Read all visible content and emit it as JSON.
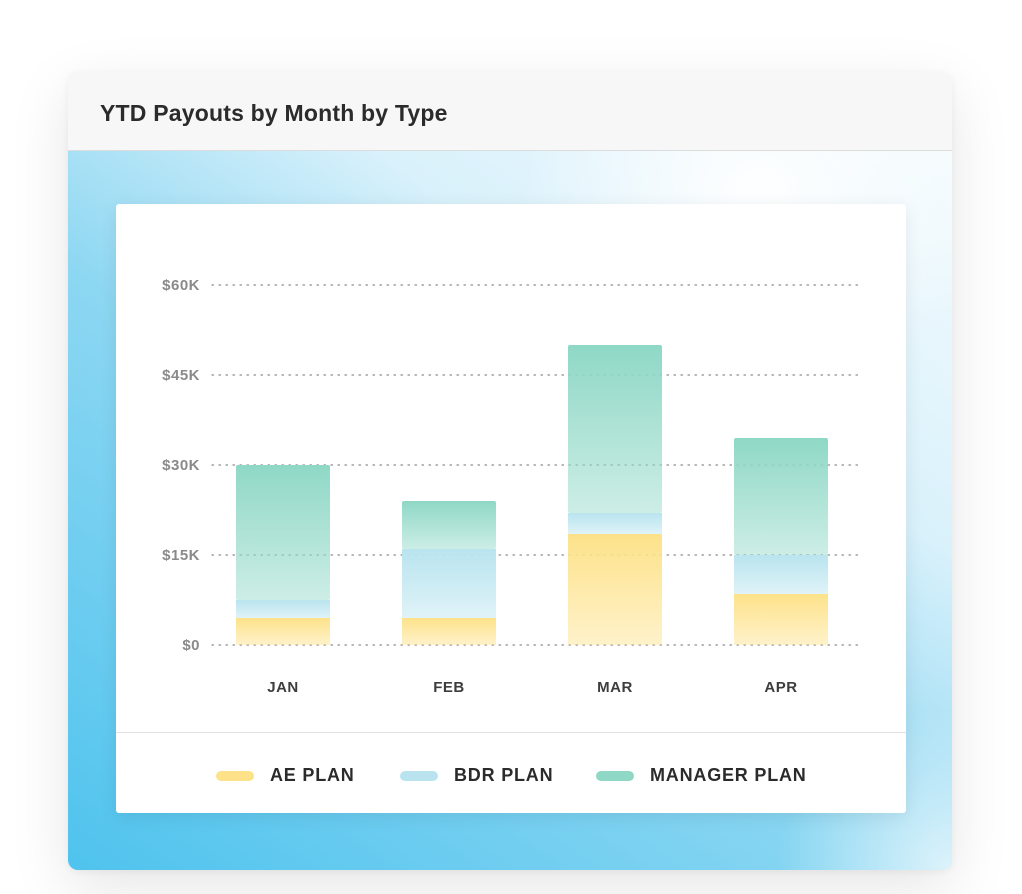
{
  "card": {
    "title": "YTD Payouts by Month by Type"
  },
  "chart_data": {
    "type": "bar",
    "stacked": true,
    "title": "YTD Payouts by Month by Type",
    "categories": [
      "JAN",
      "FEB",
      "MAR",
      "APR"
    ],
    "series": [
      {
        "name": "AE PLAN",
        "values": [
          4500,
          4500,
          18500,
          8500
        ],
        "color": "#fde28a"
      },
      {
        "name": "BDR PLAN",
        "values": [
          3000,
          11500,
          3500,
          6500
        ],
        "color": "#b9e4ef"
      },
      {
        "name": "MANAGER PLAN",
        "values": [
          22500,
          8000,
          28000,
          19500
        ],
        "color": "#8fd8c6"
      }
    ],
    "ylim": [
      0,
      60000
    ],
    "yticks": [
      0,
      15000,
      30000,
      45000,
      60000
    ],
    "ytick_labels": [
      "$0",
      "$15K",
      "$30K",
      "$45K",
      "$60K"
    ],
    "grid": true,
    "legend_position": "bottom",
    "xlabel": "",
    "ylabel": ""
  },
  "legend": {
    "items": [
      {
        "label": "AE PLAN",
        "color": "#fde28a"
      },
      {
        "label": "BDR PLAN",
        "color": "#b9e4ef"
      },
      {
        "label": "MANAGER PLAN",
        "color": "#8fd8c6"
      }
    ]
  }
}
